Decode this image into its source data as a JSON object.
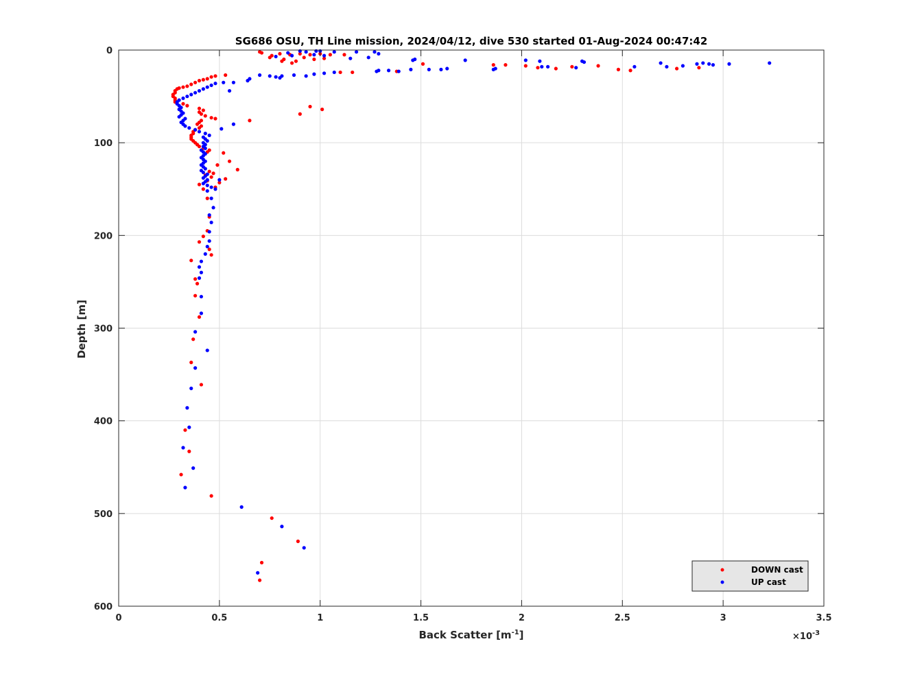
{
  "chart_data": {
    "type": "scatter",
    "title": "SG686 OSU, TH Line mission, 2024/04/12, dive 530 started 01-Aug-2024 00:47:42",
    "xlabel": "Back Scatter [m",
    "xlabel_superscript": "-1",
    "xlabel_close": "]",
    "ylabel": "Depth [m]",
    "x_exponent_label": "×10",
    "x_exponent_superscript": "-3",
    "x_exponent": -3,
    "xlim": [
      0,
      3.5
    ],
    "ylim": [
      0,
      600
    ],
    "y_reversed": true,
    "x_ticks": [
      0,
      0.5,
      1,
      1.5,
      2,
      2.5,
      3,
      3.5
    ],
    "x_tick_labels": [
      "0",
      "0.5",
      "1",
      "1.5",
      "2",
      "2.5",
      "3",
      "3.5"
    ],
    "y_ticks": [
      0,
      100,
      200,
      300,
      400,
      500,
      600
    ],
    "y_tick_labels": [
      "0",
      "100",
      "200",
      "300",
      "400",
      "500",
      "600"
    ],
    "grid": true,
    "legend_position": "bottom-right",
    "series": [
      {
        "name": "DOWN cast",
        "color": "#ff0000",
        "points": [
          [
            0.7,
            2
          ],
          [
            0.71,
            3
          ],
          [
            0.76,
            6
          ],
          [
            0.8,
            4
          ],
          [
            0.85,
            5
          ],
          [
            0.9,
            4
          ],
          [
            0.95,
            5
          ],
          [
            1.0,
            4
          ],
          [
            1.05,
            5
          ],
          [
            1.12,
            5
          ],
          [
            0.75,
            8
          ],
          [
            0.82,
            10
          ],
          [
            0.88,
            12
          ],
          [
            0.92,
            8
          ],
          [
            0.97,
            10
          ],
          [
            1.02,
            9
          ],
          [
            0.86,
            14
          ],
          [
            0.81,
            12
          ],
          [
            1.1,
            24
          ],
          [
            1.16,
            24
          ],
          [
            1.38,
            23
          ],
          [
            1.51,
            15
          ],
          [
            1.86,
            16
          ],
          [
            1.92,
            16
          ],
          [
            2.02,
            17
          ],
          [
            2.08,
            19
          ],
          [
            2.17,
            20
          ],
          [
            2.25,
            18
          ],
          [
            2.38,
            17
          ],
          [
            2.48,
            21
          ],
          [
            2.54,
            22
          ],
          [
            2.77,
            20
          ],
          [
            2.88,
            19
          ],
          [
            0.95,
            61
          ],
          [
            1.01,
            64
          ],
          [
            0.9,
            69
          ],
          [
            0.65,
            76
          ],
          [
            0.53,
            27
          ],
          [
            0.48,
            28
          ],
          [
            0.46,
            29
          ],
          [
            0.44,
            31
          ],
          [
            0.42,
            32
          ],
          [
            0.4,
            33
          ],
          [
            0.38,
            35
          ],
          [
            0.36,
            37
          ],
          [
            0.34,
            39
          ],
          [
            0.32,
            40
          ],
          [
            0.3,
            41
          ],
          [
            0.29,
            42
          ],
          [
            0.28,
            44
          ],
          [
            0.28,
            46
          ],
          [
            0.27,
            48
          ],
          [
            0.27,
            50
          ],
          [
            0.28,
            52
          ],
          [
            0.28,
            54
          ],
          [
            0.28,
            56
          ],
          [
            0.32,
            58
          ],
          [
            0.34,
            60
          ],
          [
            0.4,
            63
          ],
          [
            0.42,
            65
          ],
          [
            0.4,
            67
          ],
          [
            0.41,
            69
          ],
          [
            0.43,
            71
          ],
          [
            0.46,
            73
          ],
          [
            0.48,
            74
          ],
          [
            0.41,
            76
          ],
          [
            0.4,
            78
          ],
          [
            0.39,
            80
          ],
          [
            0.41,
            82
          ],
          [
            0.4,
            84
          ],
          [
            0.38,
            86
          ],
          [
            0.37,
            88
          ],
          [
            0.37,
            90
          ],
          [
            0.36,
            92
          ],
          [
            0.36,
            94
          ],
          [
            0.36,
            96
          ],
          [
            0.37,
            98
          ],
          [
            0.38,
            100
          ],
          [
            0.39,
            102
          ],
          [
            0.4,
            104
          ],
          [
            0.42,
            106
          ],
          [
            0.45,
            108
          ],
          [
            0.44,
            110
          ],
          [
            0.52,
            111
          ],
          [
            0.55,
            120
          ],
          [
            0.49,
            124
          ],
          [
            0.59,
            129
          ],
          [
            0.45,
            131
          ],
          [
            0.47,
            133
          ],
          [
            0.43,
            135
          ],
          [
            0.46,
            137
          ],
          [
            0.53,
            139
          ],
          [
            0.44,
            141
          ],
          [
            0.5,
            143
          ],
          [
            0.4,
            145
          ],
          [
            0.48,
            148
          ],
          [
            0.42,
            150
          ],
          [
            0.44,
            160
          ],
          [
            0.45,
            180
          ],
          [
            0.44,
            195
          ],
          [
            0.42,
            201
          ],
          [
            0.4,
            207
          ],
          [
            0.45,
            215
          ],
          [
            0.46,
            221
          ],
          [
            0.36,
            227
          ],
          [
            0.38,
            247
          ],
          [
            0.39,
            252
          ],
          [
            0.38,
            265
          ],
          [
            0.4,
            288
          ],
          [
            0.37,
            312
          ],
          [
            0.36,
            337
          ],
          [
            0.41,
            361
          ],
          [
            0.33,
            410
          ],
          [
            0.35,
            433
          ],
          [
            0.31,
            458
          ],
          [
            0.46,
            481
          ],
          [
            0.76,
            505
          ],
          [
            0.89,
            530
          ],
          [
            0.71,
            553
          ],
          [
            0.7,
            572
          ]
        ]
      },
      {
        "name": "UP cast",
        "color": "#0000ff",
        "points": [
          [
            0.9,
            1
          ],
          [
            0.93,
            2
          ],
          [
            0.98,
            1
          ],
          [
            1.0,
            1
          ],
          [
            1.07,
            2
          ],
          [
            1.18,
            2
          ],
          [
            1.27,
            2
          ],
          [
            1.29,
            4
          ],
          [
            1.02,
            6
          ],
          [
            1.24,
            8
          ],
          [
            1.15,
            9
          ],
          [
            0.97,
            5
          ],
          [
            0.86,
            6
          ],
          [
            0.78,
            7
          ],
          [
            0.84,
            3
          ],
          [
            1.47,
            10
          ],
          [
            1.46,
            11
          ],
          [
            1.72,
            11
          ],
          [
            2.02,
            11
          ],
          [
            2.09,
            12
          ],
          [
            2.3,
            12
          ],
          [
            2.31,
            13
          ],
          [
            2.69,
            14
          ],
          [
            2.9,
            14
          ],
          [
            2.87,
            15
          ],
          [
            2.93,
            15
          ],
          [
            2.95,
            16
          ],
          [
            3.03,
            15
          ],
          [
            3.23,
            14
          ],
          [
            2.8,
            17
          ],
          [
            2.72,
            18
          ],
          [
            2.56,
            18
          ],
          [
            2.27,
            19
          ],
          [
            2.13,
            18
          ],
          [
            2.1,
            18
          ],
          [
            1.87,
            20
          ],
          [
            1.86,
            21
          ],
          [
            1.63,
            20
          ],
          [
            1.6,
            21
          ],
          [
            1.54,
            21
          ],
          [
            1.45,
            21
          ],
          [
            1.39,
            23
          ],
          [
            1.34,
            22
          ],
          [
            1.29,
            22
          ],
          [
            1.28,
            23
          ],
          [
            1.07,
            24
          ],
          [
            1.02,
            25
          ],
          [
            0.97,
            26
          ],
          [
            0.93,
            28
          ],
          [
            0.87,
            27
          ],
          [
            0.81,
            28
          ],
          [
            0.78,
            29
          ],
          [
            0.8,
            30
          ],
          [
            0.75,
            28
          ],
          [
            0.7,
            27
          ],
          [
            0.65,
            31
          ],
          [
            0.64,
            33
          ],
          [
            0.57,
            35
          ],
          [
            0.55,
            44
          ],
          [
            0.52,
            35
          ],
          [
            0.48,
            36
          ],
          [
            0.46,
            38
          ],
          [
            0.44,
            40
          ],
          [
            0.42,
            42
          ],
          [
            0.4,
            44
          ],
          [
            0.38,
            46
          ],
          [
            0.36,
            48
          ],
          [
            0.34,
            50
          ],
          [
            0.32,
            52
          ],
          [
            0.3,
            54
          ],
          [
            0.29,
            56
          ],
          [
            0.29,
            58
          ],
          [
            0.3,
            60
          ],
          [
            0.31,
            62
          ],
          [
            0.3,
            64
          ],
          [
            0.31,
            66
          ],
          [
            0.32,
            68
          ],
          [
            0.31,
            70
          ],
          [
            0.3,
            72
          ],
          [
            0.33,
            74
          ],
          [
            0.32,
            76
          ],
          [
            0.31,
            78
          ],
          [
            0.32,
            80
          ],
          [
            0.33,
            82
          ],
          [
            0.35,
            84
          ],
          [
            0.38,
            86
          ],
          [
            0.4,
            88
          ],
          [
            0.57,
            80
          ],
          [
            0.51,
            85
          ],
          [
            0.43,
            90
          ],
          [
            0.45,
            92
          ],
          [
            0.42,
            94
          ],
          [
            0.43,
            96
          ],
          [
            0.44,
            98
          ],
          [
            0.42,
            100
          ],
          [
            0.43,
            102
          ],
          [
            0.42,
            104
          ],
          [
            0.43,
            106
          ],
          [
            0.41,
            108
          ],
          [
            0.42,
            110
          ],
          [
            0.43,
            112
          ],
          [
            0.42,
            114
          ],
          [
            0.41,
            116
          ],
          [
            0.42,
            118
          ],
          [
            0.43,
            120
          ],
          [
            0.42,
            122
          ],
          [
            0.41,
            124
          ],
          [
            0.42,
            126
          ],
          [
            0.43,
            128
          ],
          [
            0.41,
            130
          ],
          [
            0.42,
            132
          ],
          [
            0.44,
            134
          ],
          [
            0.43,
            136
          ],
          [
            0.42,
            138
          ],
          [
            0.44,
            140
          ],
          [
            0.43,
            142
          ],
          [
            0.42,
            144
          ],
          [
            0.44,
            146
          ],
          [
            0.46,
            148
          ],
          [
            0.48,
            150
          ],
          [
            0.44,
            152
          ],
          [
            0.5,
            140
          ],
          [
            0.46,
            160
          ],
          [
            0.47,
            170
          ],
          [
            0.45,
            178
          ],
          [
            0.46,
            186
          ],
          [
            0.45,
            196
          ],
          [
            0.45,
            206
          ],
          [
            0.44,
            212
          ],
          [
            0.43,
            220
          ],
          [
            0.41,
            228
          ],
          [
            0.4,
            234
          ],
          [
            0.41,
            240
          ],
          [
            0.4,
            246
          ],
          [
            0.41,
            266
          ],
          [
            0.41,
            284
          ],
          [
            0.38,
            304
          ],
          [
            0.44,
            324
          ],
          [
            0.38,
            343
          ],
          [
            0.36,
            365
          ],
          [
            0.34,
            386
          ],
          [
            0.35,
            407
          ],
          [
            0.32,
            429
          ],
          [
            0.37,
            451
          ],
          [
            0.33,
            472
          ],
          [
            0.61,
            493
          ],
          [
            0.81,
            514
          ],
          [
            0.92,
            537
          ],
          [
            0.69,
            564
          ]
        ]
      }
    ]
  }
}
